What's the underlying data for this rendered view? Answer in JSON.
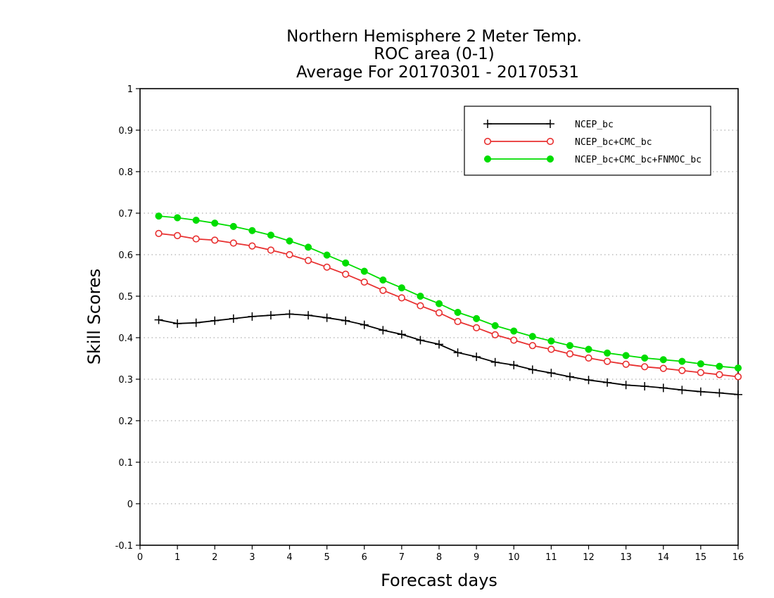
{
  "chart_data": {
    "type": "line",
    "title_lines": [
      "Northern Hemisphere 2 Meter Temp.",
      "ROC area (0-1)",
      "Average For 20170301 - 20170531"
    ],
    "xlabel": "Forecast days",
    "ylabel": "Skill Scores",
    "xlim": [
      0,
      16
    ],
    "ylim": [
      -0.1,
      1
    ],
    "xticks": [
      0,
      1,
      2,
      3,
      4,
      5,
      6,
      7,
      8,
      9,
      10,
      11,
      12,
      13,
      14,
      15,
      16
    ],
    "xtick_labels": [
      "0",
      "1",
      "2",
      "3",
      "4",
      "5",
      "6",
      "7",
      "8",
      "9",
      "10",
      "11",
      "12",
      "13",
      "14",
      "15",
      "16"
    ],
    "yticks": [
      -0.1,
      0,
      0.1,
      0.2,
      0.3,
      0.4,
      0.5,
      0.6,
      0.7,
      0.8,
      0.9,
      1
    ],
    "ytick_labels": [
      "-0.1",
      "0",
      "0.1",
      "0.2",
      "0.3",
      "0.4",
      "0.5",
      "0.6",
      "0.7",
      "0.8",
      "0.9",
      "1"
    ],
    "grid": "horizontal dotted",
    "legend_position": "top-right",
    "x": [
      0.5,
      1,
      1.5,
      2,
      2.5,
      3,
      3.5,
      4,
      4.5,
      5,
      5.5,
      6,
      6.5,
      7,
      7.5,
      8,
      8.5,
      9,
      9.5,
      10,
      10.5,
      11,
      11.5,
      12,
      12.5,
      13,
      13.5,
      14,
      14.5,
      15,
      15.5,
      16
    ],
    "series": [
      {
        "name": "NCEP_bc",
        "color": "#000000",
        "marker": "plus",
        "values": [
          0.443,
          0.434,
          0.436,
          0.441,
          0.446,
          0.451,
          0.454,
          0.457,
          0.454,
          0.448,
          0.441,
          0.431,
          0.418,
          0.408,
          0.394,
          0.384,
          0.364,
          0.354,
          0.341,
          0.334,
          0.323,
          0.315,
          0.306,
          0.298,
          0.292,
          0.286,
          0.283,
          0.279,
          0.274,
          0.27,
          0.267,
          0.263
        ]
      },
      {
        "name": "NCEP_bc+CMC_bc",
        "color": "#e83030",
        "marker": "open-circle",
        "values": [
          0.651,
          0.646,
          0.638,
          0.635,
          0.628,
          0.621,
          0.611,
          0.6,
          0.586,
          0.57,
          0.553,
          0.534,
          0.514,
          0.496,
          0.477,
          0.46,
          0.439,
          0.424,
          0.407,
          0.394,
          0.381,
          0.372,
          0.361,
          0.351,
          0.343,
          0.336,
          0.33,
          0.326,
          0.321,
          0.316,
          0.311,
          0.306
        ]
      },
      {
        "name": "NCEP_bc+CMC_bc+FNMOC_bc",
        "color": "#00dd00",
        "marker": "filled-circle",
        "values": [
          0.693,
          0.689,
          0.683,
          0.676,
          0.668,
          0.658,
          0.647,
          0.633,
          0.618,
          0.599,
          0.58,
          0.56,
          0.539,
          0.52,
          0.5,
          0.482,
          0.461,
          0.446,
          0.429,
          0.416,
          0.403,
          0.392,
          0.381,
          0.372,
          0.363,
          0.357,
          0.351,
          0.347,
          0.343,
          0.337,
          0.331,
          0.327
        ]
      }
    ]
  }
}
